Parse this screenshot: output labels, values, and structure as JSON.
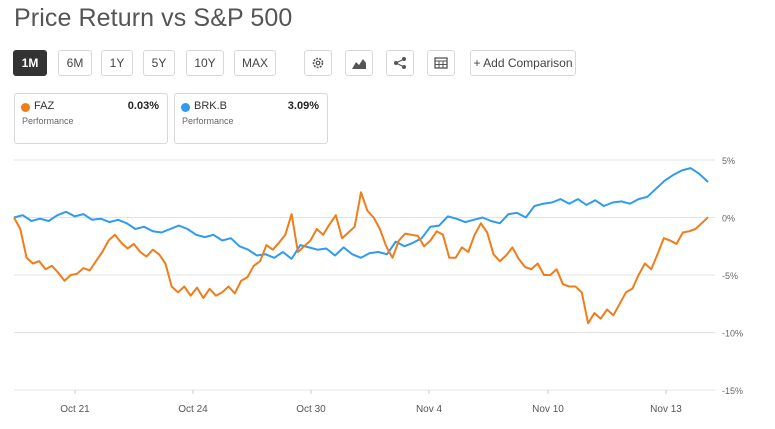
{
  "title": "Price Return vs S&P 500",
  "ranges": [
    "1M",
    "6M",
    "1Y",
    "5Y",
    "10Y",
    "MAX"
  ],
  "active_range": "1M",
  "toolbar": {
    "settings_icon": "gear-icon",
    "chart_type_icon": "area-chart-icon",
    "share_icon": "share-icon",
    "table_icon": "table-icon",
    "add_comparison_label": "+ Add Comparison"
  },
  "cards": [
    {
      "ticker": "FAZ",
      "percent": "0.03%",
      "sub": "Performance",
      "color": "#f07d1a"
    },
    {
      "ticker": "BRK.B",
      "percent": "3.09%",
      "sub": "Performance",
      "color": "#2f9bf0"
    }
  ],
  "chart_data": {
    "type": "line",
    "x_ticks": [
      "Oct 21",
      "Oct 24",
      "Oct 30",
      "Nov 4",
      "Nov 10",
      "Nov 13"
    ],
    "y_ticks": [
      "5%",
      "0%",
      "-5%",
      "-10%",
      "-15%"
    ],
    "ylim": [
      -15,
      5
    ],
    "grid": true,
    "series": [
      {
        "name": "FAZ",
        "color": "#f07d1a",
        "values": [
          0,
          -1,
          -3.5,
          -4,
          -3.8,
          -4.5,
          -4.2,
          -4.8,
          -5.5,
          -5,
          -4.9,
          -4.4,
          -4.6,
          -3.8,
          -3,
          -2,
          -1.5,
          -2.2,
          -2.7,
          -2.3,
          -3,
          -3.4,
          -2.8,
          -3.2,
          -4,
          -6,
          -6.5,
          -6,
          -6.8,
          -6.1,
          -7,
          -6.2,
          -6.8,
          -6.5,
          -6,
          -6.6,
          -5.5,
          -5.2,
          -4.2,
          -3.8,
          -2.4,
          -2.8,
          -2.2,
          -1.5,
          0.3,
          -3,
          -2.5,
          -2,
          -1,
          -1.5,
          -0.6,
          0.2,
          -1.8,
          -1.3,
          -0.8,
          2.2,
          0.6,
          0,
          -1,
          -2.5,
          -3.5,
          -2,
          -1.4,
          -1.5,
          -1.6,
          -2.5,
          -2,
          -1.2,
          -1.5,
          -3.5,
          -3.5,
          -2.6,
          -3,
          -1.5,
          -0.5,
          -1.3,
          -3.2,
          -3.8,
          -3.3,
          -2.6,
          -3.6,
          -4.3,
          -4.5,
          -4,
          -5,
          -5,
          -4.5,
          -5.8,
          -6,
          -6,
          -6.5,
          -9.2,
          -8.3,
          -8.8,
          -8,
          -8.5,
          -7.5,
          -6.5,
          -6.2,
          -5,
          -4,
          -4.5,
          -3.2,
          -1.8,
          -2,
          -2.3,
          -1.3,
          -1.2,
          -1,
          -0.5,
          0.03
        ],
        "color_name": "orange"
      },
      {
        "name": "BRK.B",
        "color": "#2f9bf0",
        "values": [
          0,
          0.2,
          -0.3,
          -0.1,
          -0.3,
          0.2,
          0.5,
          0.1,
          0.3,
          -0.2,
          -0.1,
          -0.4,
          -0.2,
          -0.5,
          -1,
          -0.8,
          -1.2,
          -1.3,
          -1,
          -0.7,
          -1,
          -1.5,
          -1.7,
          -1.5,
          -2,
          -1.8,
          -2.5,
          -2.8,
          -3.3,
          -3.2,
          -3.5,
          -3,
          -3.6,
          -2.4,
          -2.6,
          -2.8,
          -2.7,
          -3.3,
          -2.6,
          -3.2,
          -3.5,
          -3.1,
          -3,
          -3.2,
          -2.1,
          -2.5,
          -2.2,
          -1.8,
          -0.8,
          -0.7,
          0.1,
          -0.1,
          -0.4,
          -0.2,
          0,
          -0.3,
          -0.5,
          0.3,
          0.4,
          0,
          1,
          1.2,
          1.3,
          1.6,
          1.2,
          1.6,
          1.1,
          1.5,
          1,
          1.3,
          1.4,
          1.2,
          1.6,
          1.8,
          2.5,
          3.2,
          3.7,
          4.1,
          4.3,
          3.8,
          3.09
        ],
        "color_name": "blue"
      }
    ]
  }
}
